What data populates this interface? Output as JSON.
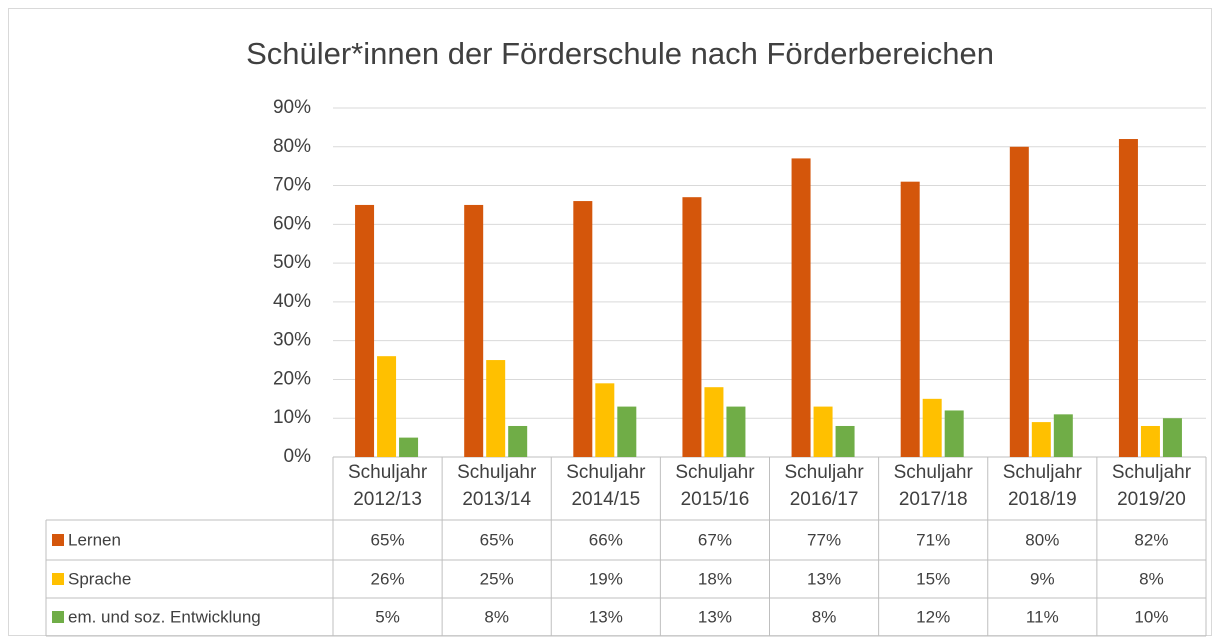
{
  "chart_data": {
    "type": "bar",
    "title": "Schüler*innen der Förderschule nach Förderbereichen",
    "categories": [
      [
        "Schuljahr",
        "2012/13"
      ],
      [
        "Schuljahr",
        "2013/14"
      ],
      [
        "Schuljahr",
        "2014/15"
      ],
      [
        "Schuljahr",
        "2015/16"
      ],
      [
        "Schuljahr",
        "2016/17"
      ],
      [
        "Schuljahr",
        "2017/18"
      ],
      [
        "Schuljahr",
        "2018/19"
      ],
      [
        "Schuljahr",
        "2019/20"
      ]
    ],
    "series": [
      {
        "name": "Lernen",
        "color": "#d4560b",
        "values": [
          65,
          65,
          66,
          67,
          77,
          71,
          80,
          82
        ],
        "value_labels": [
          "65%",
          "65%",
          "66%",
          "67%",
          "77%",
          "71%",
          "80%",
          "82%"
        ]
      },
      {
        "name": "Sprache",
        "color": "#ffc000",
        "values": [
          26,
          25,
          19,
          18,
          13,
          15,
          9,
          8
        ],
        "value_labels": [
          "26%",
          "25%",
          "19%",
          "18%",
          "13%",
          "15%",
          "9%",
          "8%"
        ]
      },
      {
        "name": "em. und soz. Entwicklung",
        "color": "#70ad47",
        "values": [
          5,
          8,
          13,
          13,
          8,
          12,
          11,
          10
        ],
        "value_labels": [
          "5%",
          "8%",
          "13%",
          "13%",
          "8%",
          "12%",
          "11%",
          "10%"
        ]
      }
    ],
    "ylim": [
      0,
      90
    ],
    "yticks": [
      {
        "value": 0,
        "label": "0%"
      },
      {
        "value": 10,
        "label": "10%"
      },
      {
        "value": 20,
        "label": "20%"
      },
      {
        "value": 30,
        "label": "30%"
      },
      {
        "value": 40,
        "label": "40%"
      },
      {
        "value": 50,
        "label": "50%"
      },
      {
        "value": 60,
        "label": "60%"
      },
      {
        "value": 70,
        "label": "70%"
      },
      {
        "value": 80,
        "label": "80%"
      },
      {
        "value": 90,
        "label": "90%"
      }
    ],
    "grid": true
  }
}
